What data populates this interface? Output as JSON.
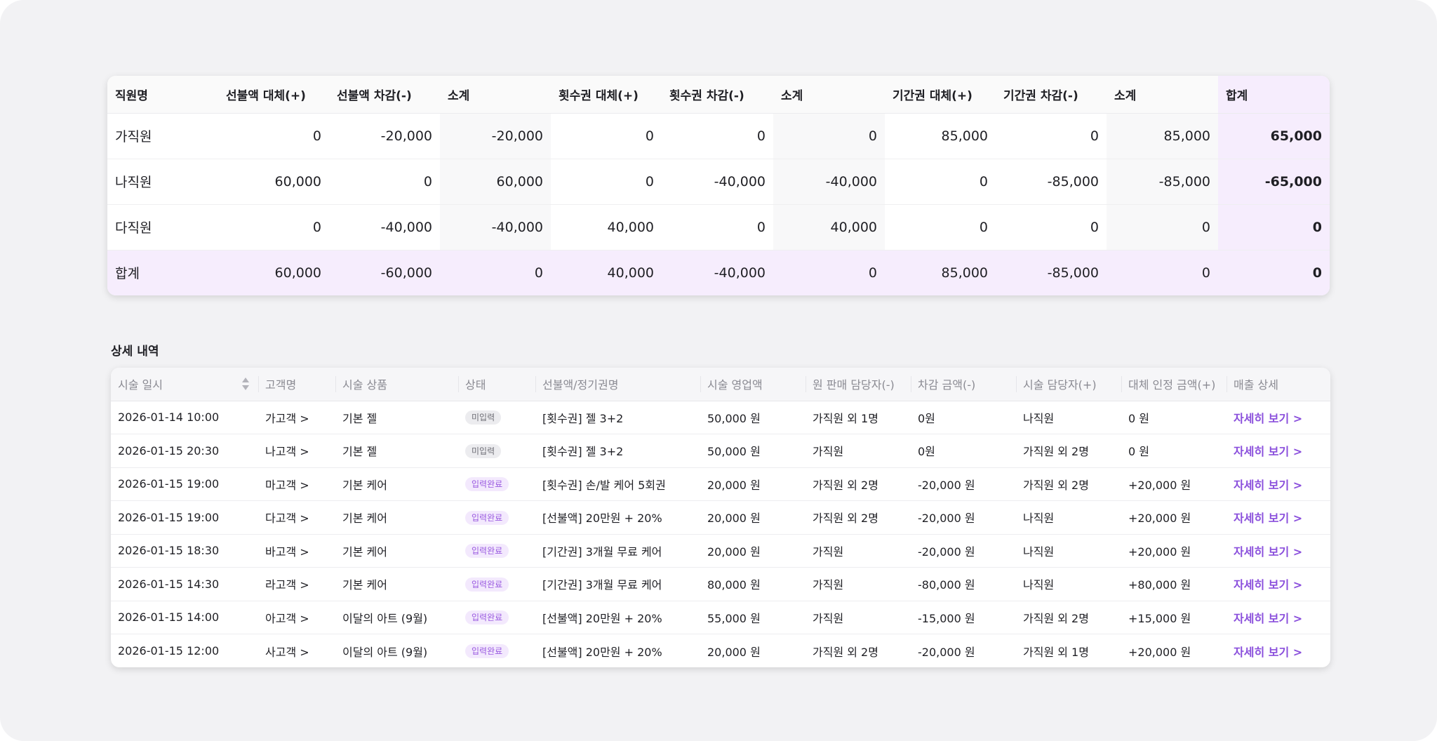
{
  "summary": {
    "headers": [
      "직원명",
      "선불액 대체(+)",
      "선불액 차감(-)",
      "소계",
      "횟수권 대체(+)",
      "횟수권 차감(-)",
      "소계",
      "기간권 대체(+)",
      "기간권 차감(-)",
      "소계",
      "합계"
    ],
    "rows": [
      [
        "가직원",
        "0",
        "-20,000",
        "-20,000",
        "0",
        "0",
        "0",
        "85,000",
        "0",
        "85,000",
        "65,000"
      ],
      [
        "나직원",
        "60,000",
        "0",
        "60,000",
        "0",
        "-40,000",
        "-40,000",
        "0",
        "-85,000",
        "-85,000",
        "-65,000"
      ],
      [
        "다직원",
        "0",
        "-40,000",
        "-40,000",
        "40,000",
        "0",
        "40,000",
        "0",
        "0",
        "0",
        "0"
      ]
    ],
    "total_row": [
      "합계",
      "60,000",
      "-60,000",
      "0",
      "40,000",
      "-40,000",
      "0",
      "85,000",
      "-85,000",
      "0",
      "0"
    ]
  },
  "detail": {
    "title": "상세 내역",
    "headers": [
      "시술 일시",
      "고객명",
      "시술 상품",
      "상태",
      "선불액/정기권명",
      "시술 영업액",
      "원 판매 담당자(-)",
      "차감 금액(-)",
      "시술 담당자(+)",
      "대체 인정 금액(+)",
      "매출 상세"
    ],
    "rows": [
      {
        "datetime": "2026-01-14 10:00",
        "customer": "가고객 >",
        "product": "기본 젤",
        "status": "미입력",
        "status_type": "pending",
        "pass": "[횟수권] 젤 3+2",
        "sales": "50,000 원",
        "seller": "가직원 외 1명",
        "deduct": "0원",
        "staff": "나직원",
        "credit": "0 원",
        "link": "자세히 보기 >"
      },
      {
        "datetime": "2026-01-15 20:30",
        "customer": "나고객 >",
        "product": "기본 젤",
        "status": "미입력",
        "status_type": "pending",
        "pass": "[횟수권] 젤 3+2",
        "sales": "50,000 원",
        "seller": "가직원",
        "deduct": "0원",
        "staff": "가직원 외 2명",
        "credit": "0 원",
        "link": "자세히 보기 >"
      },
      {
        "datetime": "2026-01-15 19:00",
        "customer": "마고객 >",
        "product": "기본 케어",
        "status": "입력완료",
        "status_type": "done",
        "pass": "[횟수권] 손/발 케어 5회권",
        "sales": "20,000 원",
        "seller": "가직원 외 2명",
        "deduct": "-20,000 원",
        "staff": "가직원 외 2명",
        "credit": "+20,000 원",
        "link": "자세히 보기 >"
      },
      {
        "datetime": "2026-01-15 19:00",
        "customer": "다고객 >",
        "product": "기본 케어",
        "status": "입력완료",
        "status_type": "done",
        "pass": "[선불액] 20만원 + 20%",
        "sales": "20,000 원",
        "seller": "가직원 외 2명",
        "deduct": "-20,000 원",
        "staff": "나직원",
        "credit": "+20,000 원",
        "link": "자세히 보기 >"
      },
      {
        "datetime": "2026-01-15 18:30",
        "customer": "바고객 >",
        "product": "기본 케어",
        "status": "입력완료",
        "status_type": "done",
        "pass": "[기간권] 3개월 무료 케어",
        "sales": "20,000 원",
        "seller": "가직원",
        "deduct": "-20,000 원",
        "staff": "나직원",
        "credit": "+20,000 원",
        "link": "자세히 보기 >"
      },
      {
        "datetime": "2026-01-15 14:30",
        "customer": "라고객 >",
        "product": "기본 케어",
        "status": "입력완료",
        "status_type": "done",
        "pass": "[기간권] 3개월 무료 케어",
        "sales": "80,000 원",
        "seller": "가직원",
        "deduct": "-80,000 원",
        "staff": "나직원",
        "credit": "+80,000 원",
        "link": "자세히 보기 >"
      },
      {
        "datetime": "2026-01-15 14:00",
        "customer": "아고객 >",
        "product": "이달의 아트 (9월)",
        "status": "입력완료",
        "status_type": "done",
        "pass": "[선불액] 20만원 + 20%",
        "sales": "55,000 원",
        "seller": "가직원",
        "deduct": "-15,000 원",
        "staff": "가직원 외 2명",
        "credit": "+15,000 원",
        "link": "자세히 보기 >"
      },
      {
        "datetime": "2026-01-15 12:00",
        "customer": "사고객 >",
        "product": "이달의 아트 (9월)",
        "status": "입력완료",
        "status_type": "done",
        "pass": "[선불액] 20만원 + 20%",
        "sales": "20,000 원",
        "seller": "가직원 외 2명",
        "deduct": "-20,000 원",
        "staff": "가직원 외 1명",
        "credit": "+20,000 원",
        "link": "자세히 보기 >"
      }
    ]
  },
  "colors": {
    "accent": "#8a4fdc",
    "total_bg": "#f6edfd",
    "badge_done_bg": "#f3e9fd",
    "badge_pending_bg": "#ececef"
  },
  "icons": {
    "sort": "sort-icon"
  }
}
